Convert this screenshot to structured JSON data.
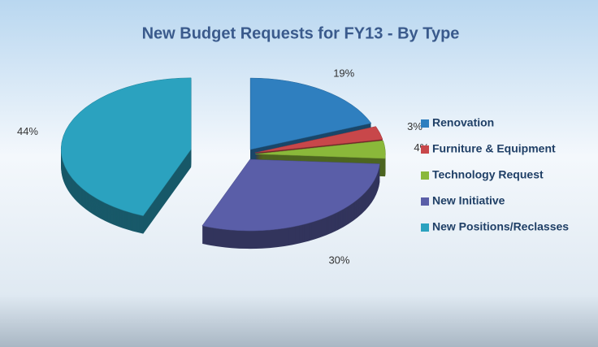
{
  "chart_data": {
    "type": "pie",
    "title": "New Budget Requests for FY13 - By Type",
    "categories": [
      "Renovation",
      "Furniture & Equipment",
      "Technology Request",
      "New Initiative",
      "New Positions/Reclasses"
    ],
    "values": [
      19,
      3,
      4,
      30,
      44
    ],
    "value_labels": [
      "19%",
      "3%",
      "4%",
      "30%",
      "44%"
    ],
    "colors": [
      "#2f7fbf",
      "#c8474a",
      "#8ab83a",
      "#5a5ea8",
      "#2ba2bf"
    ],
    "legend": "right"
  }
}
